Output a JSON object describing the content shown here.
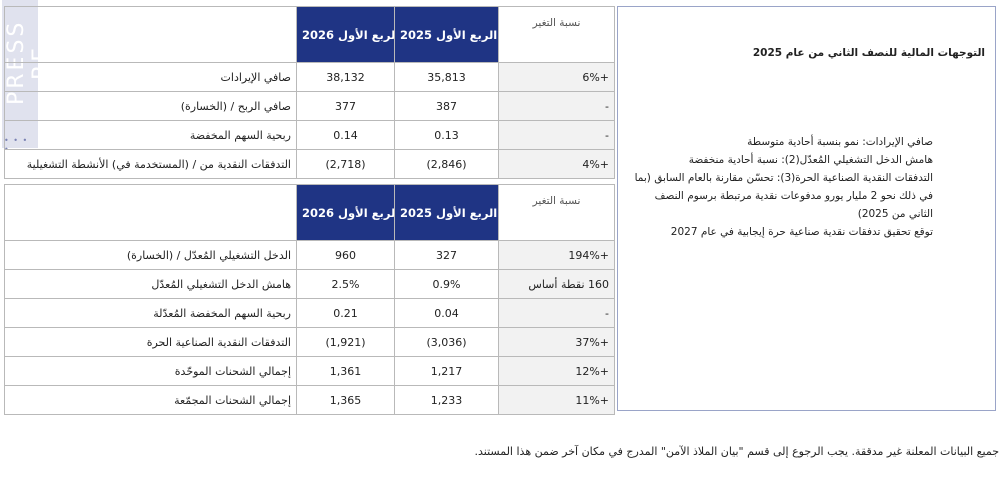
{
  "watermark": {
    "text": "PRESS RE",
    "dots": "• • • •"
  },
  "table1": {
    "headers": {
      "col_2026": "الربع الأول 2026",
      "col_2025": "الربع الأول 2025",
      "change": "نسبة التغير"
    },
    "rows": [
      {
        "label": "صافي الإيرادات",
        "v2026": "38,132",
        "v2025": "35,813",
        "change": "+6%"
      },
      {
        "label": "صافي الربح / (الخسارة)",
        "v2026": "377",
        "v2025": "387",
        "change": "-"
      },
      {
        "label": "ربحية السهم المخفضة",
        "v2026": "0.14",
        "v2025": "0.13",
        "change": "-"
      },
      {
        "label": "التدفقات النقدية من / (المستخدمة في) الأنشطة التشغيلية",
        "v2026": "(2,718)",
        "v2025": "(2,846)",
        "change": "+4%"
      }
    ]
  },
  "table2": {
    "headers": {
      "col_2026": "الربع الأول 2026",
      "col_2025": "الربع الأول 2025",
      "change": "نسبة التغير"
    },
    "rows": [
      {
        "label": "الدخل التشغيلي المُعدّل / (الخسارة)",
        "v2026": "960",
        "v2025": "327",
        "change": "+194%"
      },
      {
        "label": "هامش الدخل التشغيلي المُعدّل",
        "v2026": "2.5%",
        "v2025": "0.9%",
        "change": "160 نقطة أساس"
      },
      {
        "label": "ربحية السهم المخفضة المُعدّلة",
        "v2026": "0.21",
        "v2025": "0.04",
        "change": "-"
      },
      {
        "label": "التدفقات النقدية الصناعية الحرة",
        "v2026": "(1,921)",
        "v2025": "(3,036)",
        "change": "+37%"
      },
      {
        "label": "إجمالي الشحنات الموحّدة",
        "v2026": "1,361",
        "v2025": "1,217",
        "change": "+12%"
      },
      {
        "label": "إجمالي الشحنات المجمّعة",
        "v2026": "1,365",
        "v2025": "1,233",
        "change": "+11%"
      }
    ]
  },
  "outlook": {
    "title": "التوجهات المالية للنصف الثاني من عام 2025",
    "items": [
      "صافي الإيرادات: نمو بنسبة أحادية متوسطة",
      "هامش الدخل التشغيلي المُعدّل(2): نسبة أحادية منخفضة",
      "التدفقات النقدية الصناعية الحرة(3): تحسّن مقارنة بالعام السابق (بما في ذلك نحو 2 مليار يورو مدفوعات نقدية مرتبطة برسوم النصف الثاني من 2025)",
      "توقع تحقيق تدفقات نقدية صناعية حرة إيجابية في عام 2027"
    ]
  },
  "footnote": "جميع البيانات المعلنة غير مدققة. يجب الرجوع إلى قسم \"بيان الملاذ الآمن\" المدرج في مكان آخر ضمن هذا المستند."
}
